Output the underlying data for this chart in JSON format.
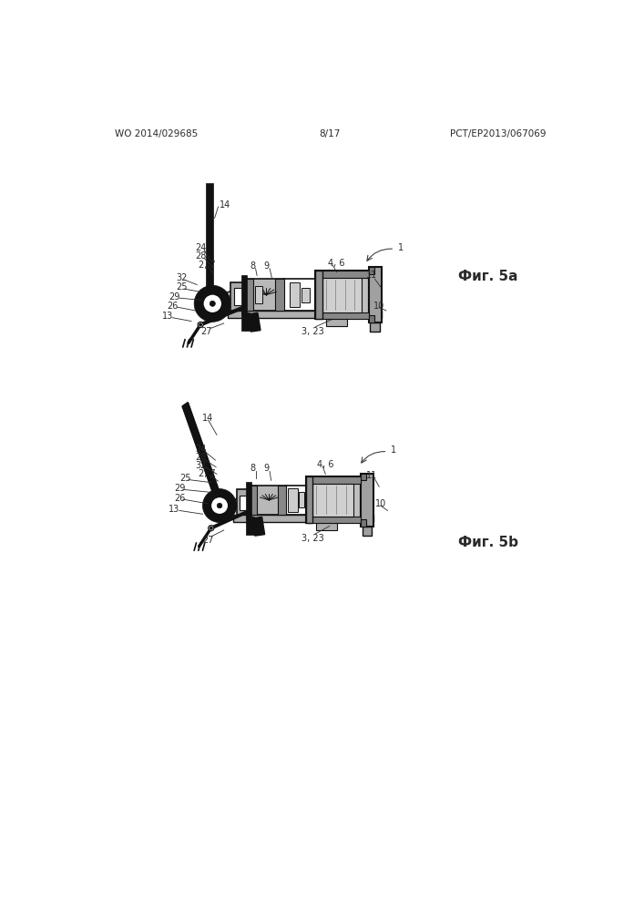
{
  "background_color": "#ffffff",
  "header_left": "WO 2014/029685",
  "header_right": "PCT/EP2013/067069",
  "header_center": "8/17",
  "fig_a_label": "Фиг. 5a",
  "fig_b_label": "Фиг. 5b",
  "text_color": "#2a2a2a",
  "dark_color": "#111111",
  "gray_color": "#888888",
  "light_gray": "#cccccc",
  "mid_gray": "#999999"
}
